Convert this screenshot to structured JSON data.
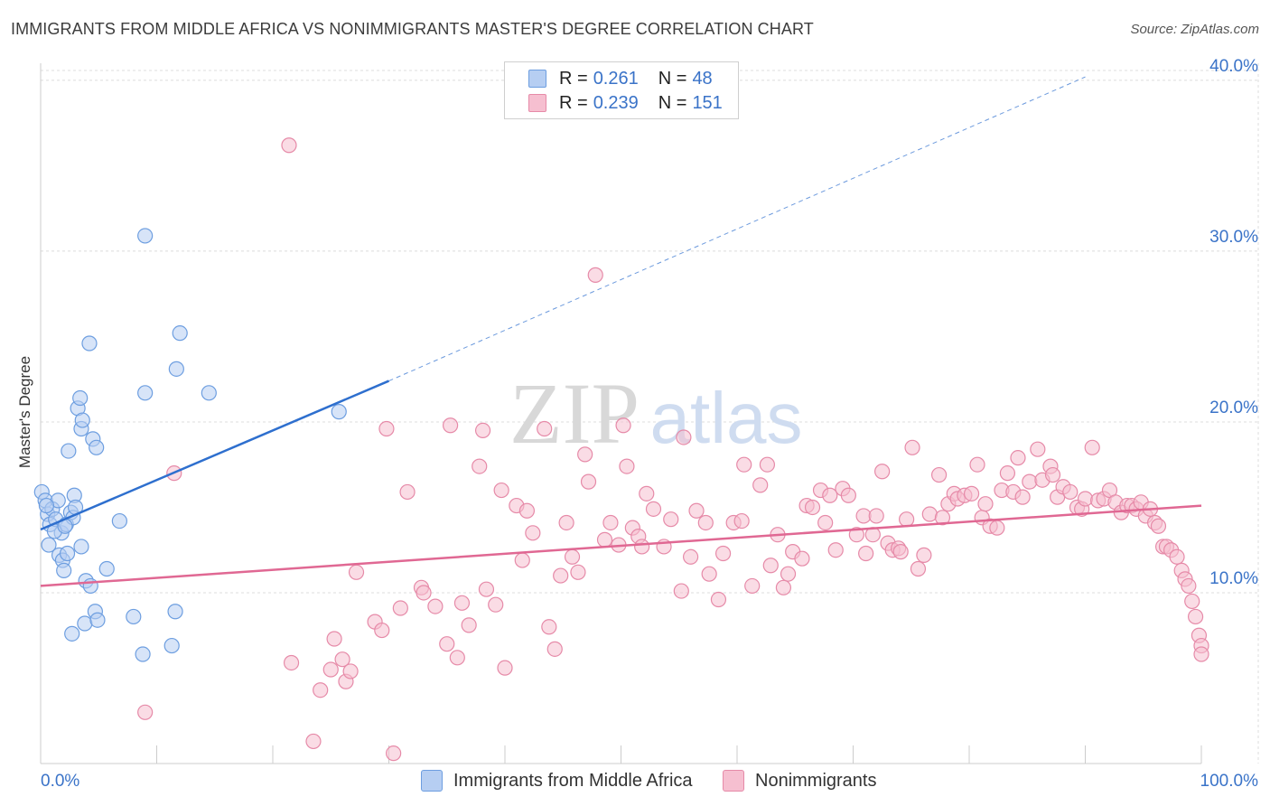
{
  "title": "IMMIGRANTS FROM MIDDLE AFRICA VS NONIMMIGRANTS MASTER'S DEGREE CORRELATION CHART",
  "source": "Source: ZipAtlas.com",
  "watermark": {
    "zip": "ZIP",
    "atlas": "atlas"
  },
  "legend": {
    "series1": {
      "r_label": "R =",
      "r_value": "0.261",
      "n_label": "N =",
      "n_value": "48"
    },
    "series2": {
      "r_label": "R =",
      "r_value": "0.239",
      "n_label": "N =",
      "n_value": "151"
    }
  },
  "colors": {
    "blue_fill": "#b6cef2",
    "blue_stroke": "#6d9ee0",
    "blue_line": "#2e6fce",
    "pink_fill": "#f6bfd0",
    "pink_stroke": "#e68aa8",
    "pink_line": "#e06893",
    "axis_text": "#3a73c8",
    "grid": "#dcdcdc"
  },
  "chart_data": {
    "type": "scatter",
    "title": "IMMIGRANTS FROM MIDDLE AFRICA VS NONIMMIGRANTS MASTER'S DEGREE CORRELATION CHART",
    "xlabel": "",
    "ylabel": "Master's Degree",
    "xlim": [
      0,
      100
    ],
    "ylim": [
      0,
      41
    ],
    "x_tick_labels": [
      "0.0%",
      "100.0%"
    ],
    "y_ticks": [
      10,
      20,
      30,
      40
    ],
    "y_tick_labels": [
      "10.0%",
      "20.0%",
      "30.0%",
      "40.0%"
    ],
    "grid": true,
    "legend_position": "top-center",
    "series": [
      {
        "name": "Immigrants from Middle Africa",
        "r": 0.261,
        "n": 48,
        "trend": {
          "x": [
            0,
            30
          ],
          "y": [
            13.7,
            22.4
          ],
          "dashed_extension": {
            "x": [
              30,
              90
            ],
            "y": [
              22.4,
              40.2
            ]
          }
        },
        "points": [
          [
            0.1,
            15.9
          ],
          [
            0.4,
            15.4
          ],
          [
            0.6,
            14.6
          ],
          [
            0.7,
            12.8
          ],
          [
            0.8,
            14.0
          ],
          [
            1.0,
            14.9
          ],
          [
            1.3,
            14.3
          ],
          [
            1.5,
            15.4
          ],
          [
            1.6,
            12.2
          ],
          [
            1.8,
            13.5
          ],
          [
            1.9,
            11.9
          ],
          [
            2.0,
            11.3
          ],
          [
            2.2,
            14.0
          ],
          [
            2.3,
            12.3
          ],
          [
            2.4,
            18.3
          ],
          [
            2.6,
            14.7
          ],
          [
            2.7,
            7.6
          ],
          [
            2.8,
            14.4
          ],
          [
            2.9,
            15.7
          ],
          [
            3.0,
            15.0
          ],
          [
            3.2,
            20.8
          ],
          [
            3.4,
            21.4
          ],
          [
            3.5,
            12.7
          ],
          [
            3.5,
            19.6
          ],
          [
            3.6,
            20.1
          ],
          [
            3.8,
            8.2
          ],
          [
            3.9,
            10.7
          ],
          [
            4.2,
            24.6
          ],
          [
            4.3,
            10.4
          ],
          [
            4.5,
            19.0
          ],
          [
            4.7,
            8.9
          ],
          [
            4.8,
            18.5
          ],
          [
            4.9,
            8.4
          ],
          [
            5.7,
            11.4
          ],
          [
            6.8,
            14.2
          ],
          [
            8.0,
            8.6
          ],
          [
            8.8,
            6.4
          ],
          [
            9.0,
            30.9
          ],
          [
            9.0,
            21.7
          ],
          [
            11.3,
            6.9
          ],
          [
            11.6,
            8.9
          ],
          [
            11.7,
            23.1
          ],
          [
            12.0,
            25.2
          ],
          [
            14.5,
            21.7
          ],
          [
            25.7,
            20.6
          ],
          [
            1.2,
            13.6
          ],
          [
            0.5,
            15.1
          ],
          [
            2.1,
            13.9
          ]
        ]
      },
      {
        "name": "Nonimmigrants",
        "r": 0.239,
        "n": 151,
        "trend": {
          "x": [
            0,
            100
          ],
          "y": [
            10.4,
            15.1
          ]
        },
        "points": [
          [
            9.0,
            3.0
          ],
          [
            11.5,
            17.0
          ],
          [
            21.4,
            36.2
          ],
          [
            21.6,
            5.9
          ],
          [
            23.5,
            1.3
          ],
          [
            24.1,
            4.3
          ],
          [
            25.0,
            5.5
          ],
          [
            25.3,
            7.3
          ],
          [
            26.0,
            6.1
          ],
          [
            26.3,
            4.8
          ],
          [
            26.7,
            5.4
          ],
          [
            27.2,
            11.2
          ],
          [
            28.8,
            8.3
          ],
          [
            29.4,
            7.8
          ],
          [
            29.8,
            19.6
          ],
          [
            30.4,
            0.6
          ],
          [
            31.0,
            9.1
          ],
          [
            31.6,
            15.9
          ],
          [
            32.8,
            10.3
          ],
          [
            33.0,
            10.0
          ],
          [
            34.0,
            9.2
          ],
          [
            35.0,
            7.0
          ],
          [
            35.3,
            19.8
          ],
          [
            35.9,
            6.2
          ],
          [
            36.3,
            9.4
          ],
          [
            36.9,
            8.1
          ],
          [
            37.8,
            17.4
          ],
          [
            38.1,
            19.5
          ],
          [
            38.4,
            10.2
          ],
          [
            39.2,
            9.3
          ],
          [
            39.7,
            16.0
          ],
          [
            40.0,
            5.6
          ],
          [
            41.0,
            15.1
          ],
          [
            41.5,
            11.9
          ],
          [
            41.9,
            14.8
          ],
          [
            42.4,
            13.5
          ],
          [
            43.4,
            19.6
          ],
          [
            43.8,
            8.0
          ],
          [
            44.3,
            6.7
          ],
          [
            44.8,
            11.0
          ],
          [
            45.3,
            14.1
          ],
          [
            45.8,
            12.1
          ],
          [
            46.3,
            11.2
          ],
          [
            46.9,
            18.1
          ],
          [
            47.2,
            16.5
          ],
          [
            47.8,
            28.6
          ],
          [
            48.6,
            13.1
          ],
          [
            49.1,
            14.1
          ],
          [
            49.8,
            12.8
          ],
          [
            50.2,
            19.8
          ],
          [
            50.5,
            17.4
          ],
          [
            51.0,
            13.8
          ],
          [
            51.5,
            13.3
          ],
          [
            51.8,
            12.7
          ],
          [
            52.2,
            15.8
          ],
          [
            52.8,
            14.9
          ],
          [
            53.7,
            12.7
          ],
          [
            54.3,
            14.3
          ],
          [
            55.2,
            10.1
          ],
          [
            55.4,
            19.1
          ],
          [
            56.0,
            12.1
          ],
          [
            56.5,
            14.8
          ],
          [
            57.3,
            14.1
          ],
          [
            57.6,
            11.1
          ],
          [
            58.4,
            9.6
          ],
          [
            58.8,
            12.3
          ],
          [
            59.7,
            14.1
          ],
          [
            60.4,
            14.2
          ],
          [
            60.6,
            17.5
          ],
          [
            61.3,
            10.4
          ],
          [
            62.0,
            16.3
          ],
          [
            62.6,
            17.5
          ],
          [
            62.9,
            11.6
          ],
          [
            63.5,
            13.4
          ],
          [
            64.0,
            10.3
          ],
          [
            64.4,
            11.1
          ],
          [
            64.8,
            12.4
          ],
          [
            65.6,
            12.0
          ],
          [
            66.0,
            15.1
          ],
          [
            66.5,
            15.0
          ],
          [
            67.2,
            16.0
          ],
          [
            67.6,
            14.1
          ],
          [
            68.0,
            15.7
          ],
          [
            68.5,
            12.5
          ],
          [
            69.1,
            16.1
          ],
          [
            69.6,
            15.7
          ],
          [
            70.3,
            13.4
          ],
          [
            70.9,
            14.5
          ],
          [
            71.1,
            12.3
          ],
          [
            71.7,
            13.4
          ],
          [
            72.0,
            14.5
          ],
          [
            72.5,
            17.1
          ],
          [
            73.0,
            12.9
          ],
          [
            73.4,
            12.5
          ],
          [
            73.9,
            12.6
          ],
          [
            74.1,
            12.4
          ],
          [
            74.6,
            14.3
          ],
          [
            75.1,
            18.5
          ],
          [
            75.6,
            11.4
          ],
          [
            76.1,
            12.2
          ],
          [
            76.6,
            14.6
          ],
          [
            77.4,
            16.9
          ],
          [
            77.7,
            14.4
          ],
          [
            78.2,
            15.2
          ],
          [
            78.7,
            15.8
          ],
          [
            79.0,
            15.5
          ],
          [
            79.6,
            15.7
          ],
          [
            80.2,
            15.8
          ],
          [
            80.7,
            17.5
          ],
          [
            81.1,
            14.4
          ],
          [
            81.4,
            15.2
          ],
          [
            81.8,
            13.9
          ],
          [
            82.4,
            13.8
          ],
          [
            82.8,
            16.0
          ],
          [
            83.3,
            17.0
          ],
          [
            83.8,
            15.9
          ],
          [
            84.2,
            17.9
          ],
          [
            84.6,
            15.6
          ],
          [
            85.2,
            16.5
          ],
          [
            85.9,
            18.4
          ],
          [
            86.3,
            16.6
          ],
          [
            87.0,
            17.4
          ],
          [
            87.2,
            16.9
          ],
          [
            87.6,
            15.6
          ],
          [
            88.1,
            16.2
          ],
          [
            88.7,
            15.9
          ],
          [
            89.3,
            15.0
          ],
          [
            89.7,
            14.9
          ],
          [
            90.0,
            15.5
          ],
          [
            90.6,
            18.5
          ],
          [
            91.1,
            15.4
          ],
          [
            91.6,
            15.5
          ],
          [
            92.1,
            16.0
          ],
          [
            92.6,
            15.3
          ],
          [
            93.1,
            14.7
          ],
          [
            93.6,
            15.1
          ],
          [
            94.0,
            15.1
          ],
          [
            94.4,
            14.9
          ],
          [
            94.8,
            15.3
          ],
          [
            95.2,
            14.5
          ],
          [
            95.6,
            14.9
          ],
          [
            96.0,
            14.1
          ],
          [
            96.3,
            13.9
          ],
          [
            96.7,
            12.7
          ],
          [
            97.0,
            12.7
          ],
          [
            97.4,
            12.5
          ],
          [
            97.9,
            12.1
          ],
          [
            98.3,
            11.3
          ],
          [
            98.6,
            10.8
          ],
          [
            98.9,
            10.4
          ],
          [
            99.2,
            9.5
          ],
          [
            99.5,
            8.6
          ],
          [
            99.8,
            7.5
          ],
          [
            100.0,
            6.9
          ],
          [
            100.0,
            6.4
          ]
        ]
      }
    ]
  }
}
